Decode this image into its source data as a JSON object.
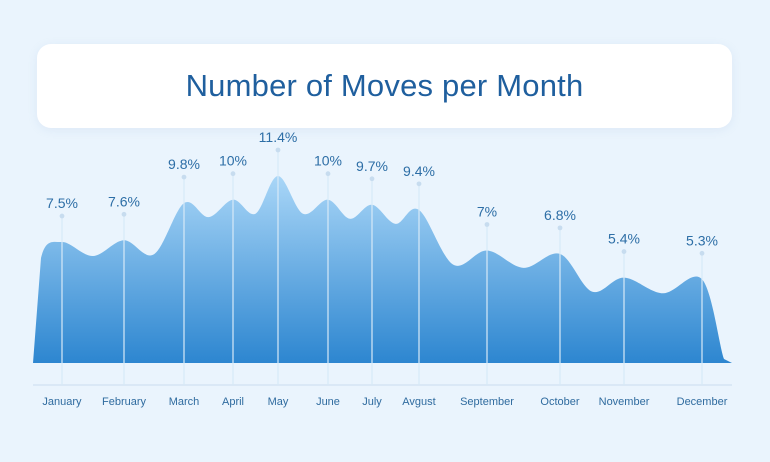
{
  "chart_data": {
    "type": "area",
    "title": "Number of Moves per Month",
    "xlabel": "",
    "ylabel": "",
    "categories": [
      "January",
      "February",
      "March",
      "April",
      "May",
      "June",
      "July",
      "Avgust",
      "September",
      "October",
      "November",
      "December"
    ],
    "values": [
      7.5,
      7.6,
      9.8,
      10,
      11.4,
      10,
      9.7,
      9.4,
      7,
      6.8,
      5.4,
      5.3
    ],
    "labels": [
      "7.5%",
      "7.6%",
      "9.8%",
      "10%",
      "11.4%",
      "10%",
      "9.7%",
      "9.4%",
      "7%",
      "6.8%",
      "5.4%",
      "5.3%"
    ],
    "ylim": [
      0,
      12
    ],
    "grid": false,
    "legend": "none",
    "colors": {
      "area_top": "#a9d6f7",
      "area_bottom": "#2d86d0",
      "title": "#1f5f9e",
      "labels": "#2d6ea6",
      "background": "#eaf4fd"
    }
  }
}
